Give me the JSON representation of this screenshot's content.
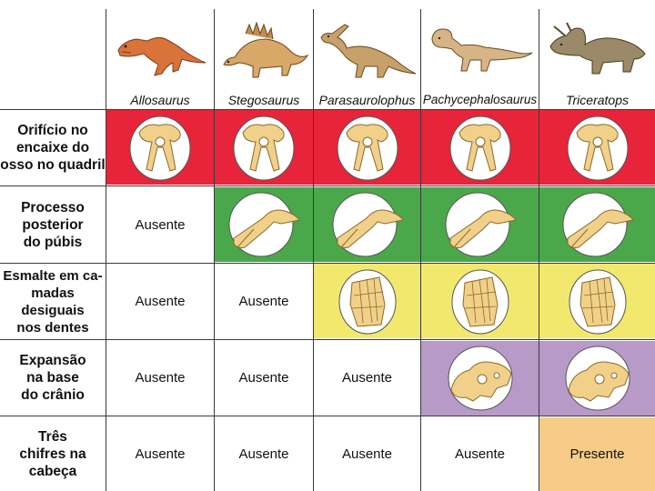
{
  "columns": [
    "Allosaurus",
    "Stegosaurus",
    "Parasaurolophus",
    "Pachycephalosaurus",
    "Triceratops"
  ],
  "rows": [
    {
      "label": "Orifício no\nencaixe do\nosso no quadril",
      "band_color": "#e8243a",
      "cells": [
        "",
        "",
        "",
        "",
        ""
      ]
    },
    {
      "label": "Processo\nposterior\ndo púbis",
      "band_color": "#4aa84a",
      "cells": [
        "Ausente",
        "",
        "",
        "",
        ""
      ]
    },
    {
      "label": "Esmalte em ca-\nmadas desiguais\nnos dentes",
      "band_color": "#f3e86e",
      "cells": [
        "Ausente",
        "Ausente",
        "",
        "",
        ""
      ]
    },
    {
      "label": "Expansão\nna base\ndo crânio",
      "band_color": "#b89ac8",
      "cells": [
        "Ausente",
        "Ausente",
        "Ausente",
        "",
        ""
      ]
    },
    {
      "label": "Três\nchifres na\ncabeça",
      "band_color": "#f7cc88",
      "cells": [
        "Ausente",
        "Ausente",
        "Ausente",
        "Ausente",
        "Presente"
      ]
    }
  ]
}
